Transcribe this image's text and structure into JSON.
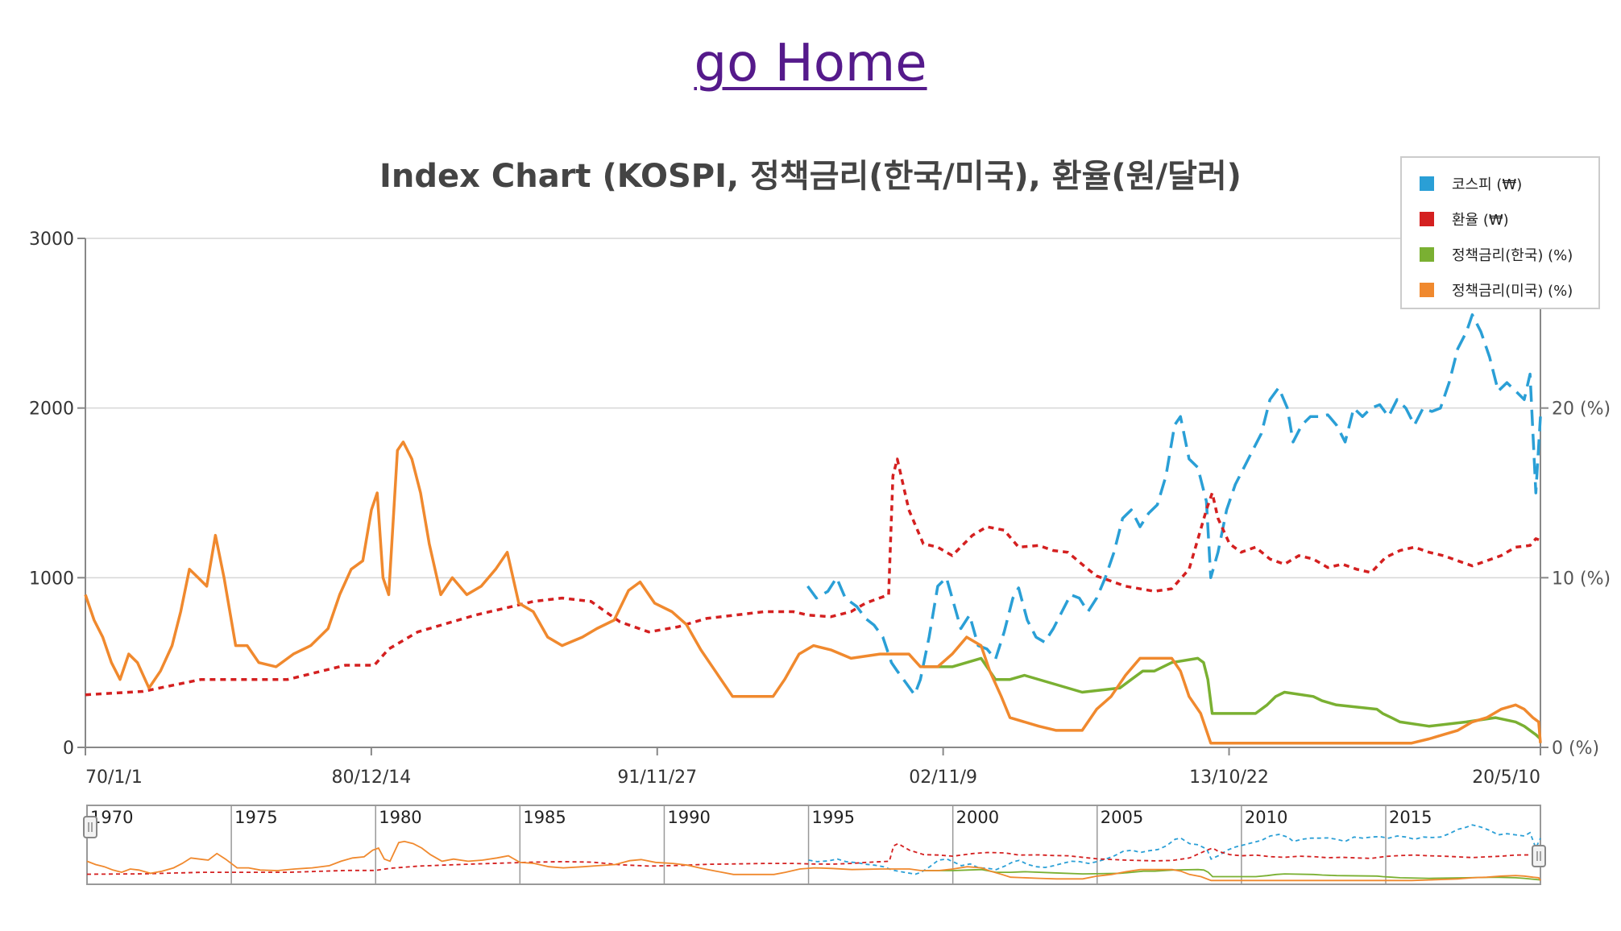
{
  "header": {
    "home_link": "go Home"
  },
  "chart_data": {
    "type": "line",
    "title": "Index Chart (KOSPI, 정책금리(한국/미국), 환율(원/달러)",
    "x_ticks": [
      "70/1/1",
      "80/12/14",
      "91/11/27",
      "02/11/9",
      "13/10/22",
      "20/5/10"
    ],
    "y_left_ticks": [
      "0",
      "1000",
      "2000",
      "3000"
    ],
    "y_right_ticks": [
      "0 (%)",
      "10 (%)",
      "20 (%)"
    ],
    "ylim_left": [
      0,
      3000
    ],
    "ylim_right": [
      0,
      30
    ],
    "xlim": [
      1970.0,
      2020.36
    ],
    "grid": true,
    "legend_position": "top-right",
    "navigator_years": [
      "1970",
      "1975",
      "1980",
      "1985",
      "1990",
      "1995",
      "2000",
      "2005",
      "2010",
      "2015"
    ],
    "series": [
      {
        "name": "코스피 (₩)",
        "axis": "left",
        "color": "#2a9fd6",
        "dash": "long",
        "x": [
          1995.0,
          1995.3,
          1995.7,
          1996.0,
          1996.3,
          1996.7,
          1997.0,
          1997.3,
          1997.6,
          1997.9,
          1998.1,
          1998.4,
          1998.7,
          1998.9,
          1999.2,
          1999.5,
          1999.8,
          2000.0,
          2000.3,
          2000.6,
          2000.9,
          2001.2,
          2001.5,
          2001.8,
          2002.1,
          2002.3,
          2002.6,
          2002.9,
          2003.2,
          2003.5,
          2003.8,
          2004.1,
          2004.4,
          2004.7,
          2005.0,
          2005.3,
          2005.6,
          2005.9,
          2006.2,
          2006.5,
          2006.8,
          2007.1,
          2007.4,
          2007.7,
          2007.9,
          2008.2,
          2008.5,
          2008.8,
          2008.95,
          2009.2,
          2009.5,
          2009.8,
          2010.1,
          2010.4,
          2010.7,
          2011.0,
          2011.3,
          2011.6,
          2011.8,
          2012.1,
          2012.4,
          2012.7,
          2013.0,
          2013.3,
          2013.6,
          2013.9,
          2014.2,
          2014.5,
          2014.8,
          2015.1,
          2015.4,
          2015.7,
          2016.0,
          2016.3,
          2016.6,
          2016.9,
          2017.2,
          2017.5,
          2017.8,
          2018.0,
          2018.3,
          2018.6,
          2018.9,
          2019.2,
          2019.5,
          2019.8,
          2020.0,
          2020.2,
          2020.36
        ],
        "y": [
          950,
          880,
          920,
          1000,
          880,
          830,
          760,
          720,
          650,
          500,
          450,
          380,
          310,
          400,
          650,
          950,
          1000,
          880,
          700,
          780,
          600,
          580,
          520,
          680,
          880,
          940,
          750,
          650,
          620,
          700,
          800,
          900,
          880,
          800,
          880,
          1000,
          1150,
          1350,
          1400,
          1300,
          1380,
          1430,
          1600,
          1900,
          1950,
          1700,
          1650,
          1450,
          1000,
          1150,
          1400,
          1550,
          1650,
          1750,
          1850,
          2050,
          2120,
          2000,
          1800,
          1900,
          1950,
          1950,
          1960,
          1900,
          1800,
          2000,
          1950,
          2000,
          2020,
          1950,
          2050,
          2000,
          1900,
          2000,
          1980,
          2000,
          2150,
          2350,
          2450,
          2550,
          2450,
          2300,
          2100,
          2150,
          2100,
          2050,
          2200,
          1500,
          1950
        ]
      },
      {
        "name": "환율 (₩)",
        "axis": "left",
        "color": "#d42020",
        "dash": "short",
        "x": [
          1970.0,
          1972.0,
          1974.0,
          1975.0,
          1977.0,
          1979.0,
          1980.0,
          1980.5,
          1981.5,
          1982.5,
          1983.5,
          1984.5,
          1985.5,
          1986.5,
          1987.5,
          1988.5,
          1989.5,
          1990.5,
          1991.5,
          1992.5,
          1993.5,
          1994.5,
          1995.0,
          1995.8,
          1996.5,
          1997.0,
          1997.8,
          1997.95,
          1998.1,
          1998.5,
          1999.0,
          1999.5,
          2000.0,
          2000.7,
          2001.2,
          2001.8,
          2002.3,
          2003.0,
          2003.5,
          2004.0,
          2004.7,
          2005.0,
          2006.0,
          2007.0,
          2007.6,
          2008.2,
          2008.8,
          2009.0,
          2009.2,
          2009.6,
          2010.0,
          2010.5,
          2011.0,
          2011.5,
          2012.0,
          2012.5,
          2013.0,
          2013.5,
          2014.0,
          2014.5,
          2015.0,
          2015.5,
          2016.0,
          2016.5,
          2017.0,
          2017.5,
          2018.0,
          2018.5,
          2019.0,
          2019.5,
          2020.0,
          2020.2,
          2020.36
        ],
        "y": [
          310,
          330,
          400,
          400,
          400,
          484,
          484,
          580,
          680,
          730,
          780,
          820,
          860,
          880,
          860,
          740,
          680,
          710,
          760,
          780,
          800,
          800,
          780,
          770,
          800,
          850,
          900,
          1600,
          1700,
          1400,
          1200,
          1180,
          1130,
          1250,
          1300,
          1280,
          1180,
          1190,
          1160,
          1150,
          1050,
          1010,
          950,
          920,
          935,
          1050,
          1400,
          1500,
          1350,
          1200,
          1150,
          1180,
          1110,
          1080,
          1130,
          1110,
          1060,
          1080,
          1050,
          1030,
          1120,
          1160,
          1180,
          1150,
          1130,
          1100,
          1070,
          1100,
          1130,
          1180,
          1190,
          1230,
          1220
        ]
      },
      {
        "name": "정책금리(한국) (%)",
        "axis": "right",
        "color": "#7ab032",
        "dash": "solid",
        "x": [
          1999.0,
          2000.0,
          2000.5,
          2001.0,
          2001.5,
          2002.0,
          2002.5,
          2003.5,
          2004.5,
          2005.8,
          2006.2,
          2006.6,
          2007.0,
          2007.6,
          2008.5,
          2008.7,
          2008.85,
          2009.0,
          2010.5,
          2010.9,
          2011.2,
          2011.5,
          2012.5,
          2012.8,
          2013.3,
          2014.7,
          2014.9,
          2015.2,
          2015.5,
          2016.5,
          2017.8,
          2018.8,
          2019.5,
          2019.8,
          2020.2,
          2020.36
        ],
        "y": [
          4.75,
          4.75,
          5.0,
          5.25,
          4.0,
          4.0,
          4.25,
          3.75,
          3.25,
          3.5,
          4.0,
          4.5,
          4.5,
          5.0,
          5.25,
          5.0,
          4.0,
          2.0,
          2.0,
          2.5,
          3.0,
          3.25,
          3.0,
          2.75,
          2.5,
          2.25,
          2.0,
          1.75,
          1.5,
          1.25,
          1.5,
          1.75,
          1.5,
          1.25,
          0.75,
          0.5
        ]
      },
      {
        "name": "정책금리(미국) (%)",
        "axis": "right",
        "color": "#f0892e",
        "dash": "solid",
        "x": [
          1970.0,
          1970.3,
          1970.6,
          1970.9,
          1971.2,
          1971.5,
          1971.8,
          1972.2,
          1972.6,
          1973.0,
          1973.3,
          1973.6,
          1973.9,
          1974.2,
          1974.5,
          1974.8,
          1975.2,
          1975.6,
          1976.0,
          1976.6,
          1977.2,
          1977.8,
          1978.4,
          1978.8,
          1979.2,
          1979.6,
          1979.9,
          1980.1,
          1980.3,
          1980.5,
          1980.8,
          1981.0,
          1981.3,
          1981.6,
          1981.9,
          1982.3,
          1982.7,
          1983.2,
          1983.7,
          1984.2,
          1984.6,
          1985.0,
          1985.5,
          1986.0,
          1986.5,
          1987.2,
          1987.7,
          1988.3,
          1988.8,
          1989.2,
          1989.7,
          1990.3,
          1990.8,
          1991.3,
          1991.8,
          1992.4,
          1993.0,
          1993.8,
          1994.2,
          1994.7,
          1995.2,
          1995.8,
          1996.5,
          1997.5,
          1998.5,
          1998.9,
          1999.5,
          2000.0,
          2000.5,
          2001.0,
          2001.3,
          2001.7,
          2002.0,
          2003.0,
          2003.6,
          2004.5,
          2005.0,
          2005.5,
          2006.0,
          2006.5,
          2007.6,
          2007.9,
          2008.2,
          2008.6,
          2008.95,
          2009.5,
          2012.0,
          2015.9,
          2016.5,
          2017.0,
          2017.5,
          2018.0,
          2018.5,
          2019.0,
          2019.5,
          2019.8,
          2020.1,
          2020.3,
          2020.36
        ],
        "y": [
          9.0,
          7.5,
          6.5,
          5.0,
          4.0,
          5.5,
          5.0,
          3.5,
          4.5,
          6.0,
          8.0,
          10.5,
          10.0,
          9.5,
          12.5,
          10.0,
          6.0,
          6.0,
          5.0,
          4.75,
          5.5,
          6.0,
          7.0,
          9.0,
          10.5,
          11.0,
          14.0,
          15.0,
          10.0,
          9.0,
          17.5,
          18.0,
          17.0,
          15.0,
          12.0,
          9.0,
          10.0,
          9.0,
          9.5,
          10.5,
          11.5,
          8.5,
          8.0,
          6.5,
          6.0,
          6.5,
          7.0,
          7.5,
          9.25,
          9.75,
          8.5,
          8.0,
          7.25,
          5.75,
          4.5,
          3.0,
          3.0,
          3.0,
          4.0,
          5.5,
          6.0,
          5.75,
          5.25,
          5.5,
          5.5,
          4.75,
          4.75,
          5.5,
          6.5,
          6.0,
          4.5,
          3.0,
          1.75,
          1.25,
          1.0,
          1.0,
          2.25,
          3.0,
          4.25,
          5.25,
          5.25,
          4.5,
          3.0,
          2.0,
          0.25,
          0.25,
          0.25,
          0.25,
          0.5,
          0.75,
          1.0,
          1.5,
          1.75,
          2.25,
          2.5,
          2.25,
          1.75,
          1.5,
          0.25
        ]
      }
    ]
  }
}
